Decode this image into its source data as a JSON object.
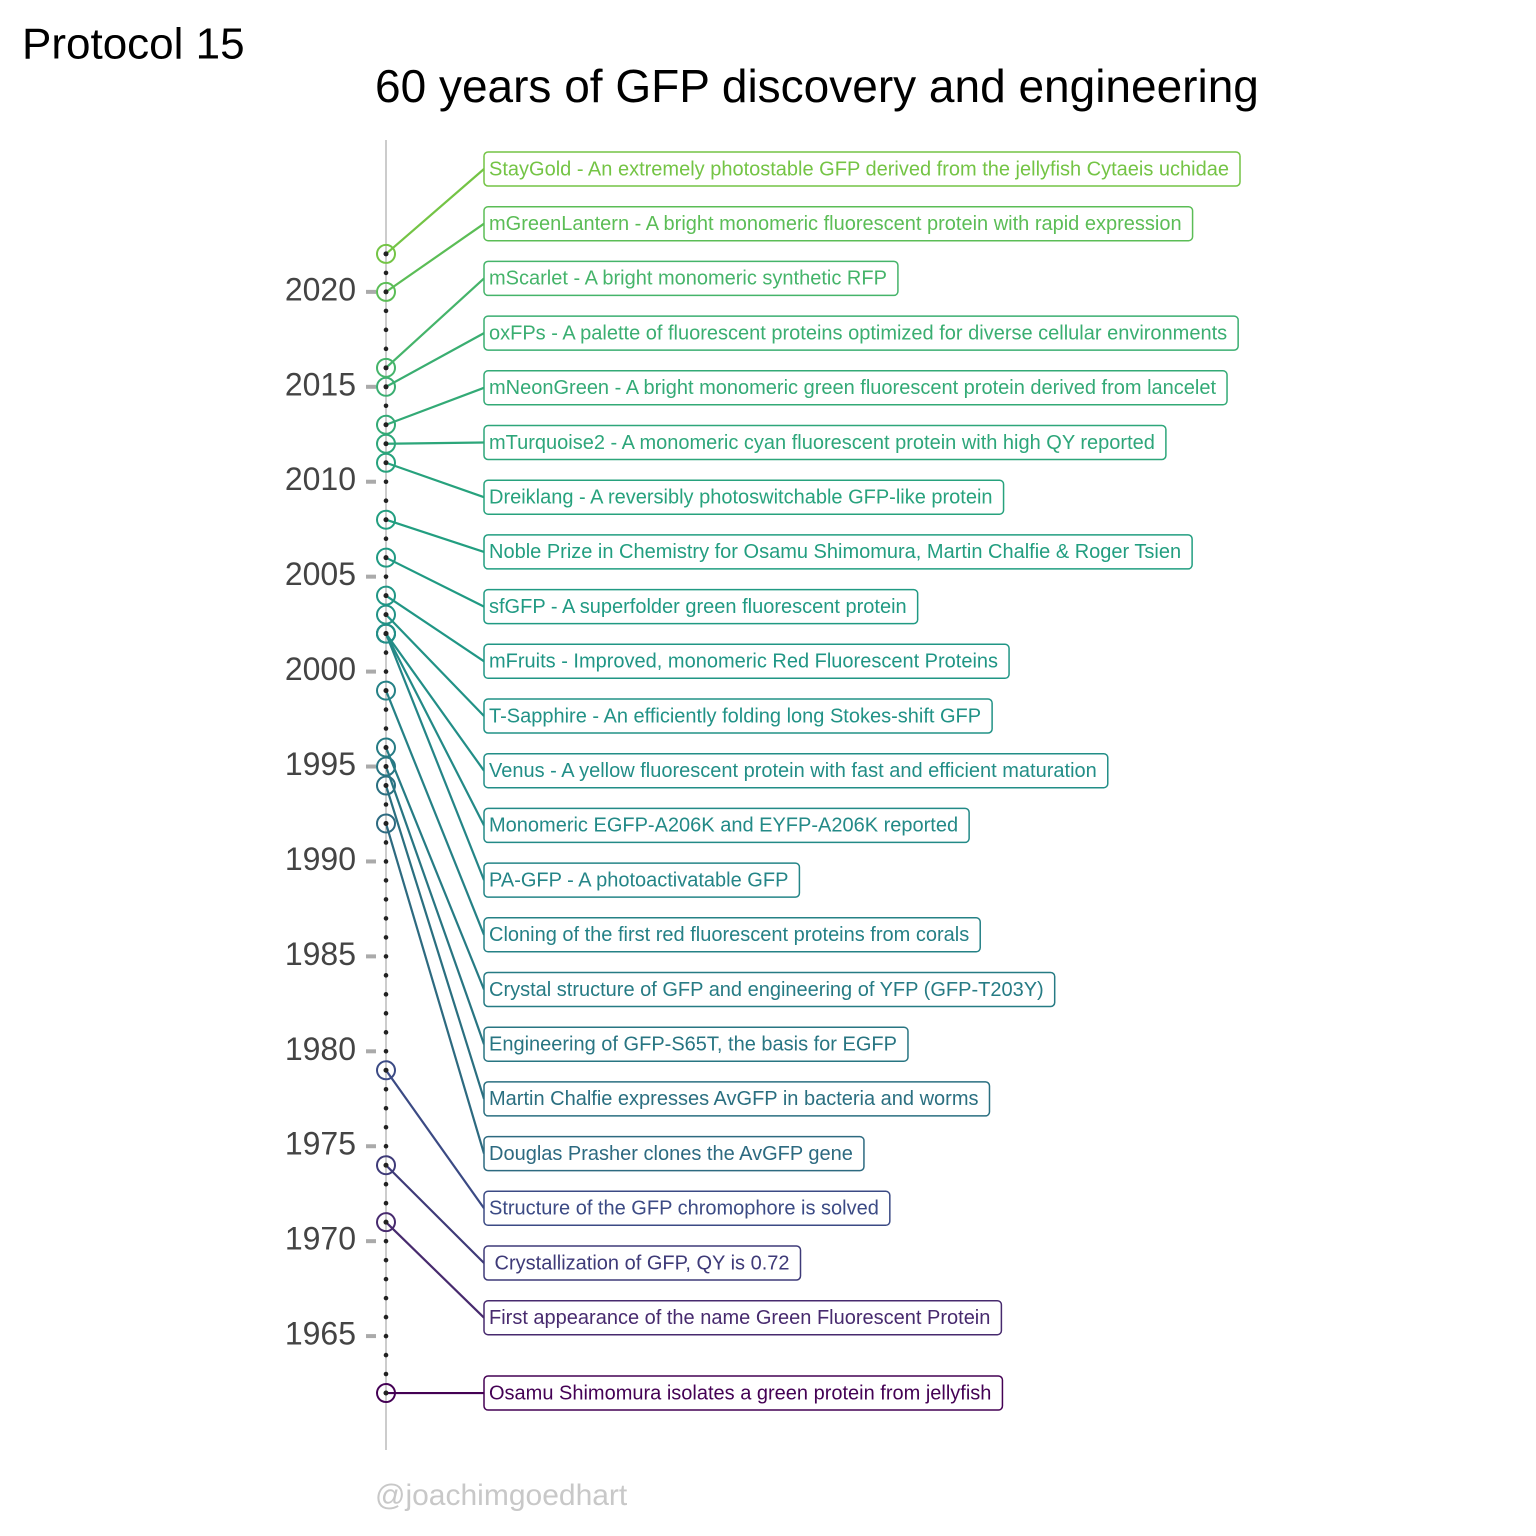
{
  "chart_data": {
    "type": "timeline",
    "corner_label": "Protocol 15",
    "title": "60 years of GFP discovery and engineering",
    "caption": "@joachimgoedhart",
    "ylim": [
      1959,
      2028
    ],
    "yticks": [
      1965,
      1970,
      1975,
      1980,
      1985,
      1990,
      1995,
      2000,
      2005,
      2010,
      2015,
      2020
    ],
    "events": [
      {
        "year": 1962,
        "label": "Osamu Shimomura isolates a green protein from jellyfish",
        "color": "#440154"
      },
      {
        "year": 1971,
        "label": "First appearance of the name Green Fluorescent Protein",
        "color": "#472a6e"
      },
      {
        "year": 1974,
        "label": " Crystallization of GFP, QY is 0.72",
        "color": "#3e3a78"
      },
      {
        "year": 1979,
        "label": "Structure of the GFP chromophore is solved",
        "color": "#3b4a84"
      },
      {
        "year": 1992,
        "label": "Douglas Prasher clones the AvGFP gene",
        "color": "#2d6a80"
      },
      {
        "year": 1994,
        "label": "Martin Chalfie expresses AvGFP in bacteria and worms",
        "color": "#2a6f80"
      },
      {
        "year": 1995,
        "label": "Engineering of GFP-S65T, the basis for EGFP",
        "color": "#287582"
      },
      {
        "year": 1996,
        "label": "Crystal structure of GFP and engineering of YFP (GFP-T203Y)",
        "color": "#267b84"
      },
      {
        "year": 1999,
        "label": "Cloning of the first red fluorescent proteins from corals",
        "color": "#258186"
      },
      {
        "year": 2002,
        "label": "PA-GFP - A photoactivatable GFP",
        "color": "#248587"
      },
      {
        "year": 2002,
        "label": "Monomeric EGFP-A206K and EYFP-A206K reported",
        "color": "#238a87"
      },
      {
        "year": 2002,
        "label": "Venus - A yellow fluorescent protein with fast and efficient maturation",
        "color": "#228e87"
      },
      {
        "year": 2003,
        "label": "T-Sapphire - An efficiently folding long Stokes-shift GFP",
        "color": "#219286"
      },
      {
        "year": 2004,
        "label": "mFruits - Improved, monomeric Red Fluorescent Proteins",
        "color": "#209685"
      },
      {
        "year": 2006,
        "label": "sfGFP - A superfolder green fluorescent protein",
        "color": "#209a83"
      },
      {
        "year": 2008,
        "label": "Noble Prize in Chemistry for Osamu Shimomura, Martin Chalfie & Roger Tsien",
        "color": "#229e80"
      },
      {
        "year": 2011,
        "label": "Dreiklang - A reversibly photoswitchable GFP-like protein",
        "color": "#27a27d"
      },
      {
        "year": 2012,
        "label": "mTurquoise2 - A monomeric cyan fluorescent protein with high QY reported",
        "color": "#2da67a"
      },
      {
        "year": 2013,
        "label": "mNeonGreen - A bright monomeric green fluorescent protein derived from lancelet",
        "color": "#33aa76"
      },
      {
        "year": 2015,
        "label": "oxFPs - A palette of fluorescent proteins optimized for diverse cellular environments",
        "color": "#3aae71"
      },
      {
        "year": 2016,
        "label": "mScarlet - A bright monomeric synthetic RFP",
        "color": "#45b46a"
      },
      {
        "year": 2020,
        "label": "mGreenLantern - A bright monomeric fluorescent protein with rapid expression",
        "color": "#5bbd56"
      },
      {
        "year": 2022,
        "label": "StayGold - An extremely photostable GFP derived from the jellyfish Cytaeis uchidae",
        "color": "#74c445"
      }
    ]
  }
}
